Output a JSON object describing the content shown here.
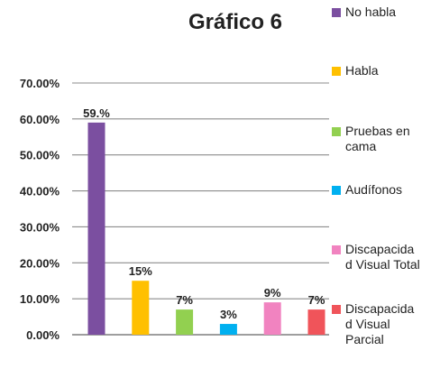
{
  "chart_data": {
    "type": "bar",
    "title": "Gráfico 6",
    "categories": [
      "No habla",
      "Habla",
      "Pruebas en cama",
      "Audífonos",
      "Discapacidad Visual Total",
      "Discapacidad Visual Parcial"
    ],
    "values": [
      59,
      15,
      7,
      3,
      9,
      7
    ],
    "data_labels": [
      "59.%",
      "15%",
      "7%",
      "3%",
      "9%",
      "7%"
    ],
    "colors": [
      "#7b4fa0",
      "#ffc000",
      "#92d050",
      "#00b0f0",
      "#f183c0",
      "#f0545a"
    ],
    "ylim": [
      0,
      70
    ],
    "y_ticks": [
      0,
      10,
      20,
      30,
      40,
      50,
      60,
      70
    ],
    "y_tick_labels": [
      "0.00%",
      "10.00%",
      "20.00%",
      "30.00%",
      "40.00%",
      "50.00%",
      "60.00%",
      "70.00%"
    ],
    "grid": true,
    "legend": {
      "placement": "right",
      "entries": [
        {
          "label": "No habla",
          "color": "#7b4fa0"
        },
        {
          "label": "Habla",
          "color": "#ffc000"
        },
        {
          "label": "Pruebas en cama",
          "color": "#92d050"
        },
        {
          "label": "Audífonos",
          "color": "#00b0f0"
        },
        {
          "label": "Discapacida d Visual Total",
          "color": "#f183c0"
        },
        {
          "label": "Discapacida d Visual Parcial",
          "color": "#f0545a"
        }
      ]
    }
  }
}
